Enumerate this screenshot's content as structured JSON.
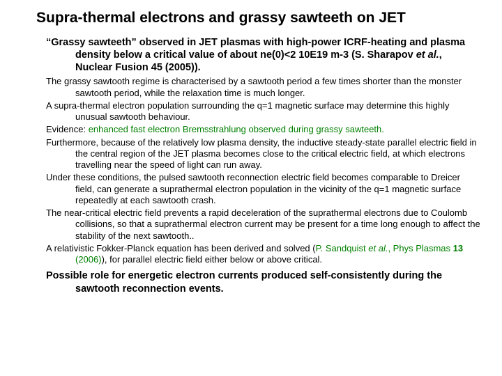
{
  "title": "Supra-thermal electrons and grassy sawteeth on JET",
  "lead": {
    "open": "“Grassy sawteeth” ",
    "mid": "observed in JET plasmas with high-power ICRF-heating and plasma density below a critical value of about ne(0)<2 10E19 m-3 (S. Sharapov ",
    "etal": "et al.",
    "close": ", Nuclear Fusion 45 (2005))."
  },
  "p1": "The grassy sawtooth regime is characterised by a sawtooth period a few times shorter than the monster sawtooth period, while the relaxation time is much longer.",
  "p2": "A supra-thermal electron population surrounding the q=1 magnetic surface may determine this highly unusual sawtooth behaviour.",
  "p3a": "Evidence: ",
  "p3b": "enhanced fast electron Bremsstrahlung observed during grassy sawteeth.",
  "p4": "Furthermore, because of the relatively low plasma density, the inductive steady-state parallel electric field in the central region of the JET plasma becomes close to the critical electric field, at which electrons travelling near the speed of light can run away.",
  "p5": "Under these conditions, the pulsed sawtooth reconnection electric field becomes comparable to Dreicer field, can generate a suprathermal electron population in the vicinity of the q=1 magnetic surface repeatedly at each sawtooth crash.",
  "p6": "The near-critical electric field prevents a rapid deceleration of the suprathermal electrons due to Coulomb collisions, so that a suprathermal electron current may be present for a time long enough to affect the stability of the next sawtooth..",
  "p7a": "A relativistic Fokker-Planck equation has been derived and solved (",
  "p7b": "P. Sandquist ",
  "p7c": "et al.",
  "p7d": ", Phys Plasmas ",
  "p7e": "13",
  "p7f": " (2006)",
  "p7g": "), for parallel electric field either below or above critical.",
  "closing": "Possible role for energetic electron currents produced self-consistently during the sawtooth reconnection events."
}
